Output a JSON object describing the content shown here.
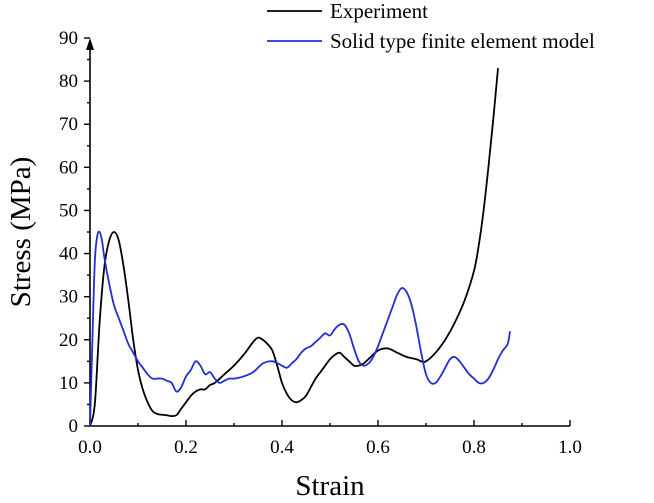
{
  "chart_data": {
    "type": "line",
    "title": "",
    "xlabel": "Strain",
    "ylabel": "Stress (MPa)",
    "xlim": [
      0.0,
      1.0
    ],
    "ylim": [
      0,
      90
    ],
    "xticks": [
      "0.0",
      "0.2",
      "0.4",
      "0.6",
      "0.8",
      "1.0"
    ],
    "xtick_values": [
      0.0,
      0.2,
      0.4,
      0.6,
      0.8,
      1.0
    ],
    "yticks": [
      "0",
      "10",
      "20",
      "30",
      "40",
      "50",
      "60",
      "70",
      "80",
      "90"
    ],
    "ytick_values": [
      0,
      10,
      20,
      30,
      40,
      50,
      60,
      70,
      80,
      90
    ],
    "grid": false,
    "legend_position": "top-right",
    "series": [
      {
        "name": "Experiment",
        "color": "#000000",
        "x": [
          0.0,
          0.01,
          0.02,
          0.03,
          0.04,
          0.05,
          0.06,
          0.07,
          0.08,
          0.09,
          0.1,
          0.11,
          0.12,
          0.13,
          0.14,
          0.15,
          0.16,
          0.17,
          0.18,
          0.19,
          0.2,
          0.21,
          0.22,
          0.23,
          0.24,
          0.25,
          0.26,
          0.28,
          0.3,
          0.32,
          0.34,
          0.35,
          0.36,
          0.37,
          0.38,
          0.39,
          0.4,
          0.41,
          0.42,
          0.43,
          0.44,
          0.45,
          0.46,
          0.47,
          0.48,
          0.49,
          0.5,
          0.51,
          0.52,
          0.53,
          0.54,
          0.55,
          0.56,
          0.57,
          0.58,
          0.6,
          0.62,
          0.64,
          0.66,
          0.68,
          0.69,
          0.7,
          0.72,
          0.74,
          0.76,
          0.78,
          0.8,
          0.81,
          0.82,
          0.83,
          0.84,
          0.85
        ],
        "y": [
          0,
          5,
          24,
          37,
          43,
          45,
          43,
          37,
          29,
          20,
          13,
          8.5,
          5.5,
          3.5,
          2.8,
          2.6,
          2.5,
          2.3,
          2.5,
          4,
          5.5,
          7,
          8,
          8.5,
          8.5,
          9.5,
          10,
          12,
          14,
          16.5,
          19.5,
          20.5,
          20,
          19,
          17.5,
          14,
          10,
          7.5,
          6,
          5.5,
          6,
          7,
          9,
          11,
          12.5,
          14,
          15.5,
          16.5,
          17,
          16,
          15,
          14,
          14,
          14.5,
          15.5,
          17.5,
          18,
          17,
          16,
          15.5,
          15,
          15,
          17,
          20,
          24,
          29,
          36,
          42,
          50,
          60,
          71,
          83
        ]
      },
      {
        "name": "Solid type finite element model",
        "color": "#1f2fd0",
        "x": [
          0.0,
          0.005,
          0.01,
          0.015,
          0.02,
          0.025,
          0.03,
          0.04,
          0.05,
          0.06,
          0.07,
          0.08,
          0.09,
          0.1,
          0.11,
          0.12,
          0.13,
          0.14,
          0.15,
          0.16,
          0.17,
          0.18,
          0.19,
          0.2,
          0.21,
          0.22,
          0.23,
          0.24,
          0.25,
          0.26,
          0.27,
          0.28,
          0.29,
          0.3,
          0.32,
          0.34,
          0.36,
          0.38,
          0.4,
          0.41,
          0.42,
          0.43,
          0.44,
          0.45,
          0.46,
          0.47,
          0.48,
          0.49,
          0.5,
          0.51,
          0.52,
          0.53,
          0.54,
          0.55,
          0.56,
          0.57,
          0.58,
          0.59,
          0.6,
          0.61,
          0.62,
          0.63,
          0.64,
          0.65,
          0.66,
          0.67,
          0.68,
          0.69,
          0.7,
          0.71,
          0.72,
          0.73,
          0.74,
          0.75,
          0.76,
          0.77,
          0.78,
          0.79,
          0.8,
          0.81,
          0.82,
          0.83,
          0.84,
          0.85,
          0.86,
          0.87,
          0.875
        ],
        "y": [
          0,
          20,
          38,
          44,
          45,
          43,
          39,
          33,
          28,
          25,
          22,
          19,
          17,
          15,
          13.5,
          12,
          11,
          11,
          11,
          10.5,
          10,
          8,
          9,
          11.5,
          13,
          15,
          14,
          12,
          12.5,
          11,
          10,
          10.5,
          11,
          11,
          11.5,
          12.5,
          14.5,
          15,
          14,
          13.5,
          14.5,
          15.5,
          17,
          18,
          18.5,
          19.5,
          20.5,
          21.5,
          21,
          22.5,
          23.5,
          23.5,
          21.5,
          18,
          15,
          14,
          14.5,
          16,
          18.5,
          21.5,
          24.5,
          27.5,
          30.5,
          32,
          31,
          28,
          23,
          17,
          12,
          10,
          10,
          11.5,
          13.5,
          15.5,
          16,
          15,
          13.5,
          12,
          11,
          10,
          10,
          11,
          13,
          15.5,
          17.5,
          19,
          22
        ]
      }
    ]
  }
}
